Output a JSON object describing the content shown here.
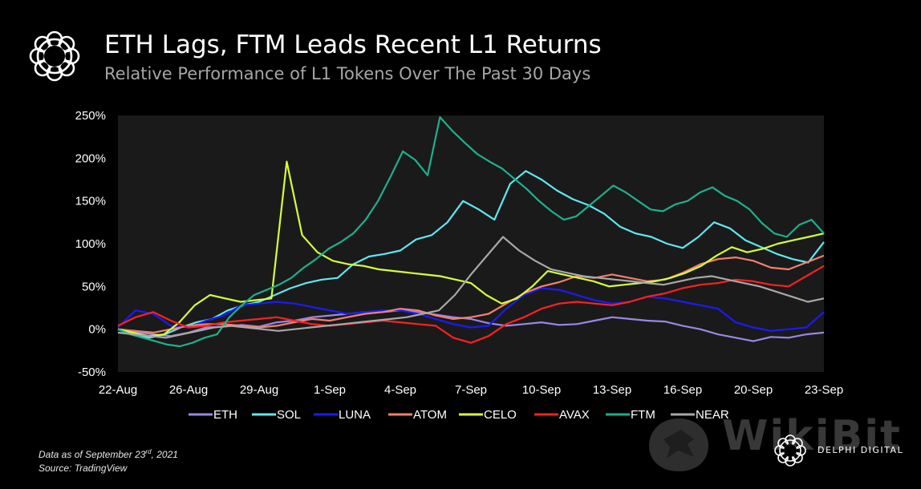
{
  "header": {
    "title": "ETH Lags, FTM Leads Recent L1 Returns",
    "subtitle": "Relative Performance of L1 Tokens Over The Past 30 Days",
    "logo_icon": "delphi-flower-logo-icon"
  },
  "footer": {
    "note_prefix": "Data as of September 23",
    "note_sup": "rd",
    "note_suffix": ", 2021",
    "source": "Source: TradingView",
    "watermark": "WikiBit",
    "brand": "DELPHI DIGITAL"
  },
  "colors": {
    "background": "#000000",
    "plot_background": "#1a1a1a"
  },
  "chart_data": {
    "type": "line",
    "x_ticks": [
      "22-Aug",
      "26-Aug",
      "29-Aug",
      "1-Sep",
      "4-Sep",
      "7-Sep",
      "10-Sep",
      "13-Sep",
      "16-Sep",
      "20-Sep",
      "23-Sep"
    ],
    "x_start": "22-Aug",
    "x_end": "23-Sep",
    "y_ticks": [
      "250%",
      "200%",
      "150%",
      "100%",
      "50%",
      "0%",
      "-50%"
    ],
    "ylim": [
      -50,
      250
    ],
    "grid": false,
    "legend": "bottom",
    "series": [
      {
        "name": "ETH",
        "color": "#9b86e6",
        "values": [
          0,
          -3,
          -6,
          -8,
          -4,
          2,
          3,
          5,
          3,
          8,
          10,
          14,
          16,
          18,
          20,
          20,
          22,
          20,
          17,
          14,
          12,
          7,
          4,
          6,
          8,
          5,
          6,
          10,
          14,
          12,
          10,
          9,
          4,
          0,
          -6,
          -10,
          -14,
          -9,
          -10,
          -6,
          -4
        ]
      },
      {
        "name": "SOL",
        "color": "#5fe8f0",
        "values": [
          0,
          -6,
          -10,
          -6,
          2,
          8,
          12,
          22,
          28,
          32,
          40,
          48,
          54,
          58,
          60,
          76,
          85,
          88,
          92,
          105,
          110,
          125,
          150,
          140,
          128,
          170,
          185,
          175,
          162,
          152,
          145,
          135,
          120,
          112,
          108,
          100,
          95,
          108,
          125,
          118,
          104,
          96,
          88,
          82,
          78,
          102
        ]
      },
      {
        "name": "LUNA",
        "color": "#1a1aff",
        "values": [
          2,
          22,
          18,
          4,
          2,
          10,
          16,
          28,
          30,
          32,
          30,
          26,
          22,
          18,
          20,
          22,
          22,
          18,
          12,
          6,
          2,
          4,
          24,
          40,
          48,
          46,
          40,
          34,
          30,
          32,
          38,
          36,
          32,
          28,
          24,
          8,
          2,
          -2,
          0,
          2,
          20
        ]
      },
      {
        "name": "ATOM",
        "color": "#f2806e",
        "values": [
          0,
          -2,
          -4,
          0,
          4,
          6,
          6,
          4,
          2,
          4,
          8,
          12,
          10,
          14,
          18,
          20,
          24,
          22,
          16,
          12,
          14,
          18,
          30,
          42,
          50,
          55,
          62,
          60,
          64,
          60,
          56,
          58,
          66,
          76,
          82,
          84,
          80,
          72,
          70,
          78,
          86
        ]
      },
      {
        "name": "CELO",
        "color": "#d4ff3a",
        "values": [
          0,
          -4,
          -8,
          -6,
          8,
          28,
          40,
          36,
          32,
          34,
          36,
          196,
          110,
          90,
          80,
          76,
          74,
          70,
          68,
          66,
          64,
          62,
          58,
          54,
          40,
          30,
          36,
          50,
          68,
          64,
          60,
          56,
          50,
          52,
          54,
          56,
          60,
          66,
          74,
          86,
          96,
          90,
          94,
          100,
          104,
          108,
          112
        ]
      },
      {
        "name": "AVAX",
        "color": "#ff2020",
        "values": [
          4,
          14,
          20,
          10,
          2,
          4,
          8,
          10,
          12,
          14,
          10,
          6,
          4,
          6,
          8,
          10,
          8,
          6,
          4,
          -10,
          -16,
          -8,
          6,
          14,
          24,
          30,
          32,
          30,
          28,
          32,
          38,
          42,
          48,
          52,
          54,
          58,
          56,
          52,
          50,
          62,
          74
        ]
      },
      {
        "name": "FTM",
        "color": "#1db18e",
        "values": [
          0,
          -6,
          -10,
          -14,
          -18,
          -20,
          -16,
          -10,
          -6,
          14,
          28,
          40,
          46,
          52,
          60,
          72,
          82,
          94,
          102,
          112,
          128,
          150,
          178,
          208,
          198,
          180,
          248,
          232,
          218,
          205,
          196,
          188,
          176,
          164,
          150,
          138,
          128,
          132,
          144,
          156,
          168,
          160,
          150,
          140,
          138,
          146,
          150,
          160,
          166,
          156,
          150,
          140,
          124,
          112,
          108,
          122,
          128,
          112
        ]
      },
      {
        "name": "NEAR",
        "color": "#a8a8a8",
        "values": [
          -4,
          -6,
          -8,
          -10,
          -6,
          -2,
          2,
          4,
          2,
          0,
          -2,
          0,
          2,
          4,
          6,
          8,
          10,
          12,
          14,
          18,
          22,
          40,
          64,
          86,
          108,
          92,
          80,
          70,
          66,
          62,
          60,
          58,
          56,
          54,
          52,
          56,
          60,
          62,
          58,
          54,
          50,
          44,
          38,
          32,
          36
        ]
      }
    ]
  }
}
